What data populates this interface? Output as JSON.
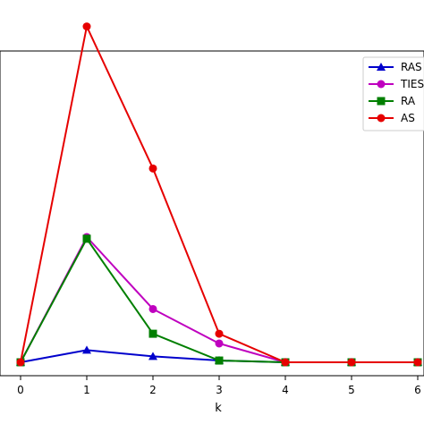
{
  "chart_data": {
    "type": "line",
    "xlabel": "k",
    "ylabel": "",
    "title": "",
    "x": [
      0,
      1,
      2,
      3,
      4,
      5,
      6
    ],
    "xticks": [
      "0",
      "1",
      "2",
      "3",
      "4",
      "5",
      "6"
    ],
    "xlim": [
      0,
      6
    ],
    "ylim": [
      0,
      1
    ],
    "grid": false,
    "legend_position": "top-right",
    "series": [
      {
        "name": "RAS",
        "color": "#0000cc",
        "marker": "triangle",
        "values": [
          0.0,
          0.035,
          0.017,
          0.005,
          0.0,
          0.0,
          0.0
        ]
      },
      {
        "name": "TIES",
        "color": "#bf00bf",
        "marker": "circle",
        "values": [
          0.0,
          0.36,
          0.153,
          0.054,
          0.0,
          0.0,
          0.0
        ]
      },
      {
        "name": "RA",
        "color": "#007f00",
        "marker": "square",
        "values": [
          0.0,
          0.355,
          0.082,
          0.005,
          0.0,
          0.0,
          0.0
        ]
      },
      {
        "name": "AS",
        "color": "#e60000",
        "marker": "circle",
        "values": [
          0.0,
          0.965,
          0.557,
          0.082,
          0.0,
          0.0,
          0.0
        ]
      }
    ]
  }
}
